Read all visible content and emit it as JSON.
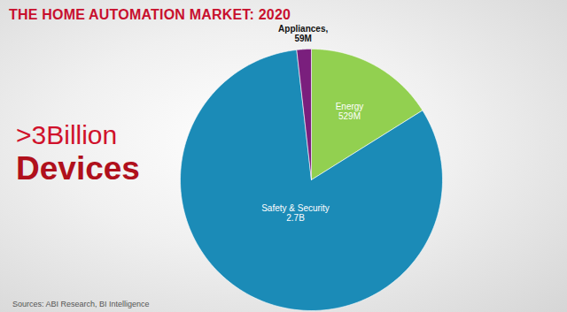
{
  "chart_data": {
    "type": "pie",
    "title": "THE HOME AUTOMATION MARKET: 2020",
    "annotations": [
      ">3Billion",
      "Devices"
    ],
    "source": "Sources: ABI Research, BI Intelligence",
    "categories": [
      "Energy",
      "Safety & Security",
      "Appliances,"
    ],
    "values": [
      529,
      2700,
      59
    ],
    "value_labels": [
      "529M",
      "2.7B",
      "59M"
    ],
    "colors": [
      "#92d050",
      "#1b8bb7",
      "#7a1f7d"
    ],
    "data_labels": true,
    "tick_labels": false
  }
}
